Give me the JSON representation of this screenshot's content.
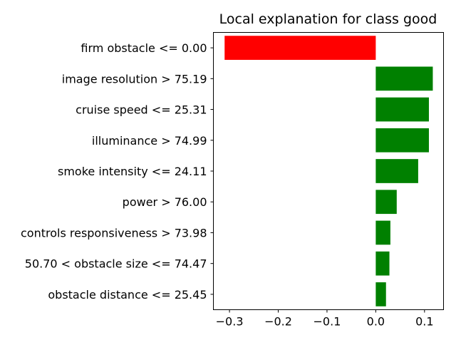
{
  "chart_data": {
    "type": "bar",
    "orientation": "horizontal",
    "title": "Local explanation for class good",
    "xlabel": "",
    "ylabel": "",
    "xlim": [
      -0.333,
      0.139
    ],
    "xticks": [
      -0.3,
      -0.2,
      -0.1,
      0.0,
      0.1
    ],
    "xtick_labels": [
      "−0.3",
      "−0.2",
      "−0.1",
      "0.0",
      "0.1"
    ],
    "grid": false,
    "legend": "none",
    "categories": [
      "firm obstacle <= 0.00",
      "image resolution > 75.19",
      "cruise speed <= 25.31",
      "illuminance > 74.99",
      "smoke intensity <= 24.11",
      "power > 76.00",
      "controls responsiveness > 73.98",
      "50.70 < obstacle size <= 74.47",
      "obstacle distance <= 25.45"
    ],
    "values": [
      -0.31,
      0.117,
      0.109,
      0.109,
      0.087,
      0.043,
      0.03,
      0.028,
      0.021
    ],
    "colors": {
      "positive": "#008000",
      "negative": "#ff0000"
    }
  }
}
